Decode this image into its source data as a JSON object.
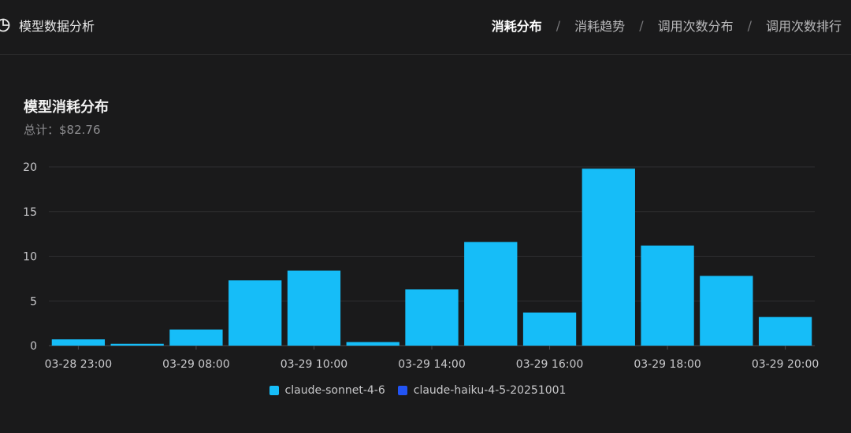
{
  "header": {
    "title": "模型数据分析",
    "tabs": [
      {
        "label": "消耗分布",
        "active": true
      },
      {
        "label": "消耗趋势",
        "active": false
      },
      {
        "label": "调用次数分布",
        "active": false
      },
      {
        "label": "调用次数排行",
        "active": false
      }
    ],
    "separator": "/"
  },
  "card": {
    "title": "模型消耗分布",
    "subtitle": "总计：$82.76"
  },
  "colors": {
    "accent": "#16bdf8",
    "secondary": "#2254f4",
    "background": "#1a1a1b"
  },
  "chart_data": {
    "type": "bar",
    "stacked": true,
    "title": "",
    "xlabel": "",
    "ylabel": "",
    "ylim": [
      0,
      20
    ],
    "yticks": [
      0,
      5,
      10,
      15,
      20
    ],
    "grid": true,
    "legend_position": "bottom",
    "categories": [
      "03-28 23:00",
      "",
      "03-29 08:00",
      "",
      "03-29 10:00",
      "",
      "03-29 14:00",
      "",
      "03-29 16:00",
      "",
      "03-29 18:00",
      "",
      "03-29 20:00"
    ],
    "series": [
      {
        "name": "claude-sonnet-4-6",
        "color": "#16bdf8",
        "values": [
          0.7,
          0.2,
          1.8,
          7.3,
          8.4,
          0.4,
          6.3,
          11.6,
          3.7,
          19.8,
          11.2,
          7.8,
          3.2
        ]
      },
      {
        "name": "claude-haiku-4-5-20251001",
        "color": "#2254f4",
        "values": [
          0,
          0,
          0,
          0,
          0,
          0,
          0,
          0,
          0,
          0,
          0,
          0,
          0
        ]
      }
    ]
  }
}
